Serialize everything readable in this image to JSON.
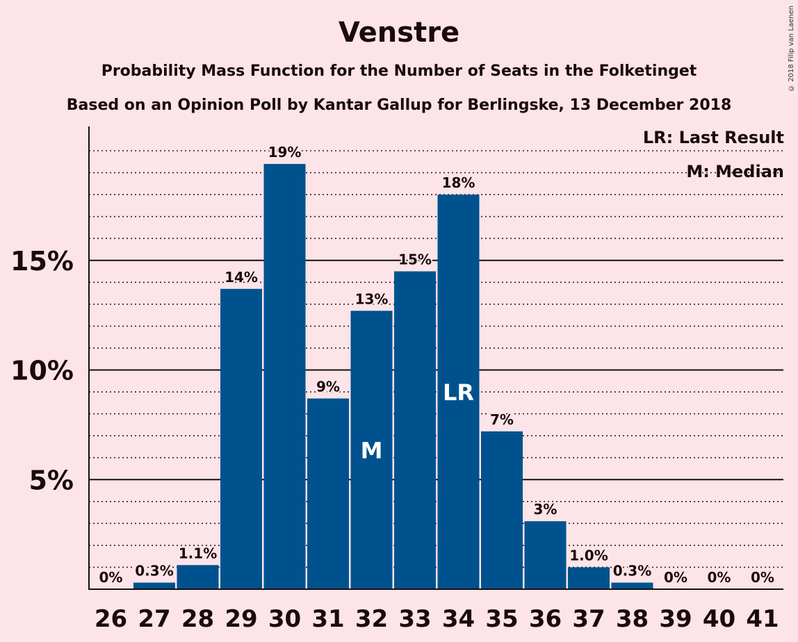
{
  "chart_data": {
    "type": "bar",
    "title": "Venstre",
    "subtitle": "Probability Mass Function for the Number of Seats in the Folketinget",
    "subtitle2": "Based on an Opinion Poll by Kantar Gallup for Berlingske, 13 December 2018",
    "categories": [
      "26",
      "27",
      "28",
      "29",
      "30",
      "31",
      "32",
      "33",
      "34",
      "35",
      "36",
      "37",
      "38",
      "39",
      "40",
      "41"
    ],
    "values": [
      0,
      0.3,
      1.1,
      13.7,
      19.4,
      8.7,
      12.7,
      14.5,
      18.0,
      7.2,
      3.1,
      1.0,
      0.3,
      0,
      0,
      0
    ],
    "data_labels": [
      "0%",
      "0.3%",
      "1.1%",
      "14%",
      "19%",
      "9%",
      "13%",
      "15%",
      "18%",
      "7%",
      "3%",
      "1.0%",
      "0.3%",
      "0%",
      "0%",
      "0%"
    ],
    "y_ticks": [
      5,
      10,
      15
    ],
    "y_tick_labels": [
      "5%",
      "10%",
      "15%"
    ],
    "ylim": [
      0,
      21
    ],
    "minor_grid_step": 1,
    "grid": true,
    "bar_color": "#00528e",
    "markers": {
      "M": "32",
      "LR": "34"
    },
    "legend": {
      "lr": "LR: Last Result",
      "m": "M: Median",
      "position": "top-right"
    }
  },
  "copyright": "© 2018 Filip van Laenen"
}
